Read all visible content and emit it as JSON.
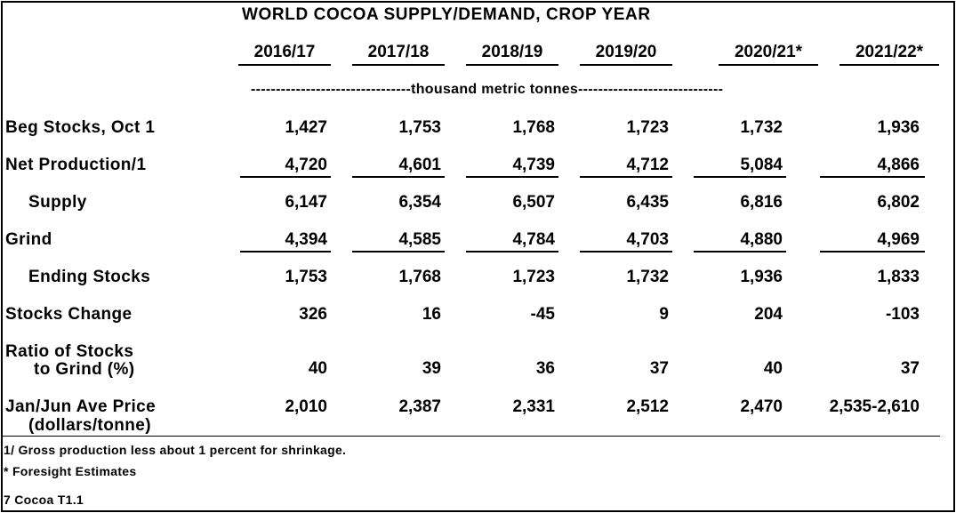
{
  "title": "WORLD COCOA SUPPLY/DEMAND, CROP YEAR",
  "years": [
    "2016/17",
    "2017/18",
    "2018/19",
    "2019/20",
    "2020/21*",
    "2021/22*"
  ],
  "units": "--------------------------------thousand metric tonnes-----------------------------",
  "rows": [
    {
      "label": "Beg Stocks, Oct 1",
      "values": [
        "1,427",
        "1,753",
        "1,768",
        "1,723",
        "1,732",
        "1,936"
      ]
    },
    {
      "label": "Net Production/1",
      "values": [
        "4,720",
        "4,601",
        "4,739",
        "4,712",
        "5,084",
        "4,866"
      ]
    },
    {
      "label": "Supply",
      "values": [
        "6,147",
        "6,354",
        "6,507",
        "6,435",
        "6,816",
        "6,802"
      ]
    },
    {
      "label": "Grind",
      "values": [
        "4,394",
        "4,585",
        "4,784",
        "4,703",
        "4,880",
        "4,969"
      ]
    },
    {
      "label": "Ending Stocks",
      "values": [
        "1,753",
        "1,768",
        "1,723",
        "1,732",
        "1,936",
        "1,833"
      ]
    },
    {
      "label": "Stocks Change",
      "values": [
        "326",
        "16",
        "-45",
        "9",
        "204",
        "-103"
      ]
    },
    {
      "label_line1": "Ratio  of Stocks",
      "label_line2": "to Grind (%)",
      "values": [
        "40",
        "39",
        "36",
        "37",
        "40",
        "37"
      ]
    },
    {
      "label_line1": "Jan/Jun Ave Price",
      "label_line2": "(dollars/tonne)",
      "values": [
        "2,010",
        "2,387",
        "2,331",
        "2,512",
        "2,470",
        "2,535-2,610"
      ]
    }
  ],
  "footnotes": [
    "1/ Gross production less about 1 percent for shrinkage.",
    "* Foresight Estimates",
    "7 Cocoa T1.1"
  ]
}
